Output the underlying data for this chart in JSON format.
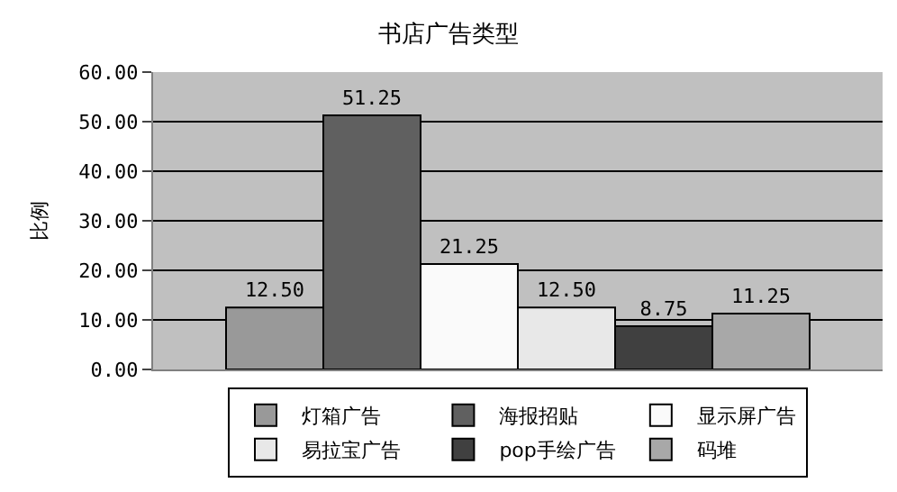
{
  "chart_data": {
    "type": "bar",
    "title": "书店广告类型",
    "ylabel": "比例",
    "categories": [
      null
    ],
    "series": [
      {
        "name": "灯箱广告",
        "color": "#999999",
        "values": [
          12.5
        ],
        "value_labels": [
          "12.50"
        ]
      },
      {
        "name": "海报招贴",
        "color": "#606060",
        "values": [
          51.25
        ],
        "value_labels": [
          "51.25"
        ]
      },
      {
        "name": "显示屏广告",
        "color": "#fafafa",
        "values": [
          21.25
        ],
        "value_labels": [
          "21.25"
        ]
      },
      {
        "name": "易拉宝广告",
        "color": "#e8e8e8",
        "values": [
          12.5
        ],
        "value_labels": [
          "12.50"
        ]
      },
      {
        "name": "pop手绘广告",
        "color": "#404040",
        "values": [
          8.75
        ],
        "value_labels": [
          "8.75"
        ]
      },
      {
        "name": "码堆",
        "color": "#a8a8a8",
        "values": [
          11.25
        ],
        "value_labels": [
          "11.25"
        ]
      }
    ],
    "ylim": [
      0,
      60
    ],
    "yticks": [
      {
        "value": 0,
        "label": "0.00"
      },
      {
        "value": 10,
        "label": "10.00"
      },
      {
        "value": 20,
        "label": "20.00"
      },
      {
        "value": 30,
        "label": "30.00"
      },
      {
        "value": 40,
        "label": "40.00"
      },
      {
        "value": 50,
        "label": "50.00"
      },
      {
        "value": 60,
        "label": "60.00"
      }
    ],
    "grid": "y",
    "legend": "bottom"
  }
}
